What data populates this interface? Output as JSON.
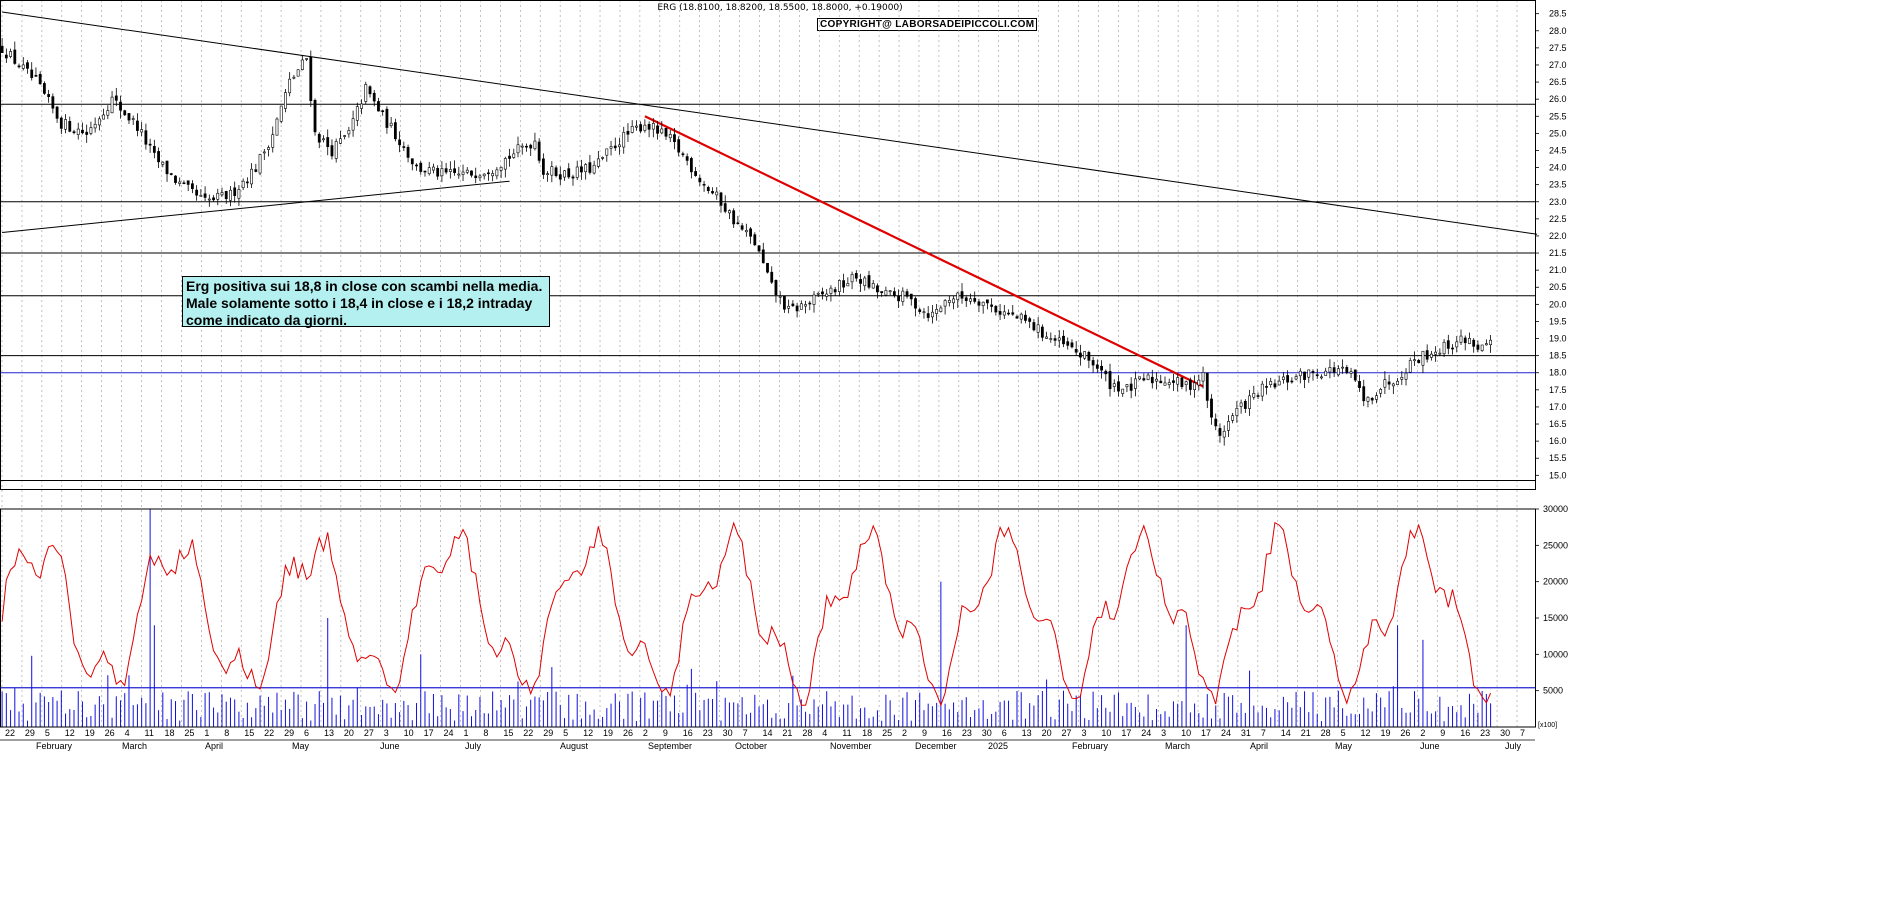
{
  "chart_data": [
    {
      "type": "candlestick",
      "title": "ERG (18.8100, 18.8200, 18.5500, 18.8000, +0.19000)",
      "watermark": "COPYRIGHT@ LABORSADEIPICCOLI.COM",
      "annotation": [
        "Erg positiva sui 18,8 in close con scambi nella media.",
        "Male solamente sotto i 18,4 in close e i 18,2 intraday",
        "come indicato da giorni."
      ],
      "y_axis_position": "right",
      "ylim": [
        14.6,
        28.9
      ],
      "y_ticks": [
        "28.5",
        "28.0",
        "27.5",
        "27.0",
        "26.5",
        "26.0",
        "25.5",
        "25.0",
        "24.5",
        "24.0",
        "23.5",
        "23.0",
        "22.5",
        "22.0",
        "21.5",
        "21.0",
        "20.5",
        "20.0",
        "19.5",
        "19.0",
        "18.5",
        "18.0",
        "17.5",
        "17.0",
        "16.5",
        "16.0",
        "15.5",
        "15.0"
      ],
      "horizontal_levels": [
        25.85,
        23.0,
        21.5,
        20.25,
        18.5,
        14.85
      ],
      "blue_level": 18.0,
      "close_path": [
        [
          0,
          27.5
        ],
        [
          8,
          26.5
        ],
        [
          14,
          25.3
        ],
        [
          20,
          25.0
        ],
        [
          26,
          26.0
        ],
        [
          32,
          25.2
        ],
        [
          36,
          24.3
        ],
        [
          42,
          23.5
        ],
        [
          48,
          23.0
        ],
        [
          54,
          23.2
        ],
        [
          60,
          24.0
        ],
        [
          64,
          25.0
        ],
        [
          68,
          26.5
        ],
        [
          72,
          27.2
        ],
        [
          74,
          25.0
        ],
        [
          78,
          24.5
        ],
        [
          82,
          25.0
        ],
        [
          86,
          26.3
        ],
        [
          90,
          25.5
        ],
        [
          94,
          24.8
        ],
        [
          98,
          24.0
        ],
        [
          104,
          23.8
        ],
        [
          110,
          23.8
        ],
        [
          116,
          24.0
        ],
        [
          122,
          24.5
        ],
        [
          126,
          24.8
        ],
        [
          128,
          23.9
        ],
        [
          134,
          23.8
        ],
        [
          140,
          24.0
        ],
        [
          146,
          24.8
        ],
        [
          152,
          25.3
        ],
        [
          158,
          24.8
        ],
        [
          162,
          24.2
        ],
        [
          166,
          23.5
        ],
        [
          170,
          23.0
        ],
        [
          174,
          22.3
        ],
        [
          178,
          21.8
        ],
        [
          182,
          20.5
        ],
        [
          186,
          19.8
        ],
        [
          190,
          20.0
        ],
        [
          196,
          20.4
        ],
        [
          202,
          20.8
        ],
        [
          208,
          20.3
        ],
        [
          214,
          20.2
        ],
        [
          218,
          19.8
        ],
        [
          220,
          19.7
        ],
        [
          224,
          20.2
        ],
        [
          230,
          20.2
        ],
        [
          236,
          19.8
        ],
        [
          242,
          19.5
        ],
        [
          248,
          19.0
        ],
        [
          254,
          18.6
        ],
        [
          258,
          18.3
        ],
        [
          262,
          17.7
        ],
        [
          266,
          17.5
        ],
        [
          270,
          17.8
        ],
        [
          276,
          17.8
        ],
        [
          280,
          17.6
        ],
        [
          284,
          17.9
        ],
        [
          286,
          16.6
        ],
        [
          288,
          16.2
        ],
        [
          292,
          16.9
        ],
        [
          298,
          17.5
        ],
        [
          304,
          17.8
        ],
        [
          310,
          18.0
        ],
        [
          316,
          18.1
        ],
        [
          320,
          17.8
        ],
        [
          322,
          17.1
        ],
        [
          326,
          17.6
        ],
        [
          330,
          17.9
        ],
        [
          334,
          18.4
        ],
        [
          340,
          18.7
        ],
        [
          346,
          19.0
        ],
        [
          350,
          18.7
        ],
        [
          352,
          18.8
        ]
      ],
      "price_lines": [
        {
          "name": "long-downtrend",
          "color": "#000000",
          "from": [
            0,
            28.55
          ],
          "to": [
            363,
            22.05
          ]
        },
        {
          "name": "support-rising",
          "color": "#000000",
          "from": [
            0,
            22.1
          ],
          "to": [
            120,
            23.6
          ]
        },
        {
          "name": "red-downtrend",
          "color": "#e00000",
          "from": [
            152,
            25.5
          ],
          "to": [
            284,
            17.6
          ]
        }
      ],
      "x_ticks": [
        "22",
        "29",
        "5",
        "12",
        "19",
        "26",
        "4",
        "11",
        "18",
        "25",
        "1",
        "8",
        "15",
        "22",
        "29",
        "6",
        "13",
        "20",
        "27",
        "3",
        "10",
        "17",
        "24",
        "1",
        "8",
        "15",
        "22",
        "29",
        "5",
        "12",
        "19",
        "26",
        "2",
        "9",
        "16",
        "23",
        "30",
        "7",
        "14",
        "21",
        "28",
        "4",
        "11",
        "18",
        "25",
        "2",
        "9",
        "16",
        "23",
        "30",
        "6",
        "13",
        "20",
        "27",
        "3",
        "10",
        "17",
        "24",
        "3",
        "10",
        "17",
        "24",
        "31",
        "7",
        "14",
        "21",
        "28",
        "5",
        "12",
        "19",
        "26",
        "2",
        "9",
        "16",
        "23",
        "30",
        "7"
      ],
      "months": [
        "February",
        "March",
        "April",
        "May",
        "June",
        "July",
        "August",
        "September",
        "October",
        "November",
        "December",
        "2025",
        "February",
        "March",
        "April",
        "May",
        "June",
        "July"
      ]
    },
    {
      "type": "bar-line",
      "y_ticks": [
        "30000",
        "25000",
        "20000",
        "15000",
        "10000",
        "5000"
      ],
      "ylim": [
        0,
        30000
      ],
      "average_level": 5400,
      "volume_scale_label": "[x100]",
      "line_color": "#e00000",
      "bar_color": "#0000e0",
      "volume_spikes": [
        [
          7,
          9800
        ],
        [
          35,
          30000
        ],
        [
          36,
          14000
        ],
        [
          77,
          15000
        ],
        [
          99,
          10000
        ],
        [
          163,
          8000
        ],
        [
          222,
          20000
        ],
        [
          280,
          14000
        ],
        [
          330,
          14000
        ],
        [
          336,
          12000
        ]
      ]
    }
  ]
}
